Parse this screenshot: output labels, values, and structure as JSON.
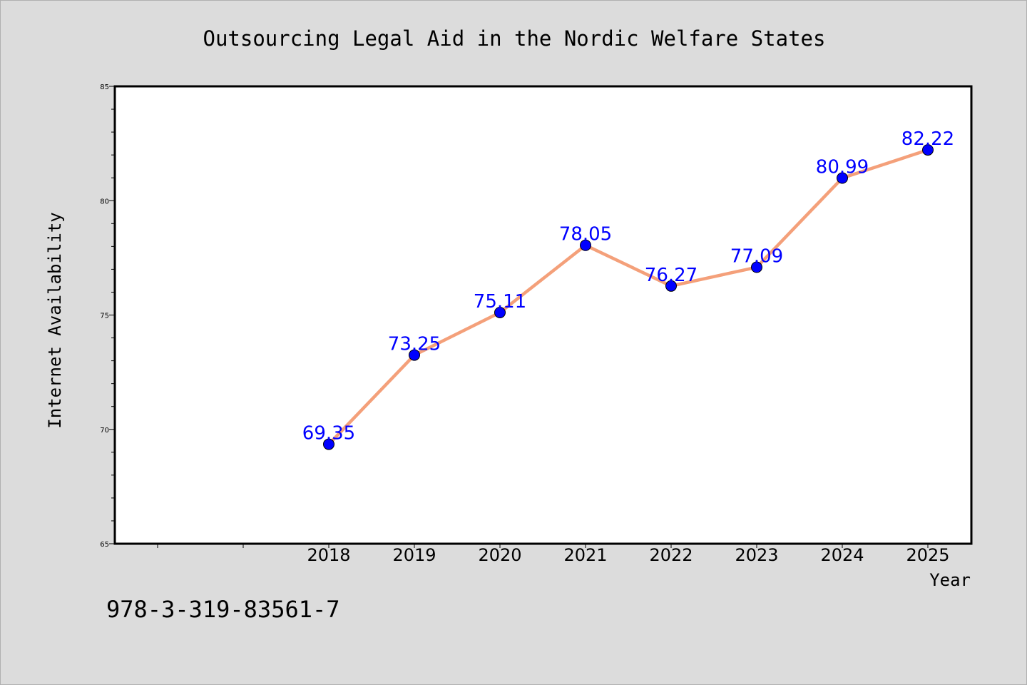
{
  "chart_data": {
    "type": "line",
    "title": "Outsourcing Legal Aid in the Nordic Welfare States",
    "xlabel": "Year",
    "ylabel": "Internet Availability",
    "x": [
      "2018",
      "2019",
      "2020",
      "2021",
      "2022",
      "2023",
      "2024",
      "2025"
    ],
    "series": [
      {
        "values": [
          69.35,
          73.25,
          75.11,
          78.05,
          76.27,
          77.09,
          80.99,
          82.22
        ]
      }
    ],
    "data_labels": [
      "69.35",
      "73.25",
      "75.11",
      "78.05",
      "76.27",
      "77.09",
      "80.99",
      "82.22"
    ],
    "ylim": [
      65,
      85
    ],
    "yticks": [
      65,
      70,
      75,
      80,
      85
    ],
    "grid": false,
    "legend": "none",
    "colors": {
      "line": "#f4a07a",
      "marker": "#0000ff",
      "label": "#0000ff",
      "plot_background": "#ffffff",
      "page_background": "#dcdcdc"
    }
  },
  "footer": {
    "code": "978-3-319-83561-7"
  }
}
